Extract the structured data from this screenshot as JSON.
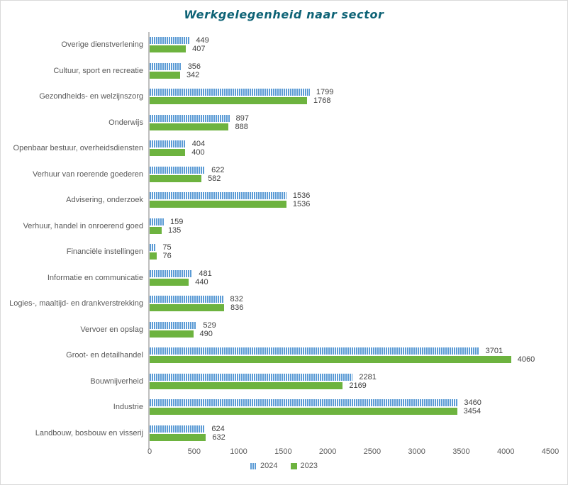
{
  "chart_data": {
    "type": "bar",
    "orientation": "horizontal",
    "title": "Werkgelegenheid naar sector",
    "categories": [
      "Overige dienstverlening",
      "Cultuur, sport en recreatie",
      "Gezondheids- en welzijnszorg",
      "Onderwijs",
      "Openbaar bestuur, overheidsdiensten",
      "Verhuur van roerende goederen",
      "Advisering, onderzoek",
      "Verhuur, handel in onroerend goed",
      "Financiële instellingen",
      "Informatie en communicatie",
      "Logies-, maaltijd- en drankverstrekking",
      "Vervoer en opslag",
      "Groot- en detailhandel",
      "Bouwnijverheid",
      "Industrie",
      "Landbouw, bosbouw en visserij"
    ],
    "series": [
      {
        "name": "2024",
        "color": "#5B9BD5",
        "pattern": "vertical-stripes",
        "values": [
          449,
          356,
          1799,
          897,
          404,
          622,
          1536,
          159,
          75,
          481,
          832,
          529,
          3701,
          2281,
          3460,
          624
        ]
      },
      {
        "name": "2023",
        "color": "#6DB33F",
        "pattern": "solid",
        "values": [
          407,
          342,
          1768,
          888,
          400,
          582,
          1536,
          135,
          76,
          440,
          836,
          490,
          4060,
          2169,
          3454,
          632
        ]
      }
    ],
    "xlim": [
      0,
      4500
    ],
    "x_ticks": [
      "0",
      "500",
      "1000",
      "1500",
      "2000",
      "2500",
      "3000",
      "3500",
      "4000",
      "4500"
    ],
    "grid": false,
    "value_labels": true,
    "legend_position": "bottom",
    "colors": {
      "title_text": "#0E6376",
      "category_text": "#595959",
      "value_text": "#404040",
      "tick_text": "#595959",
      "axis_line": "#BFBFBF",
      "canvas_border": "#D9D9D9",
      "background": "#FFFFFF"
    }
  }
}
